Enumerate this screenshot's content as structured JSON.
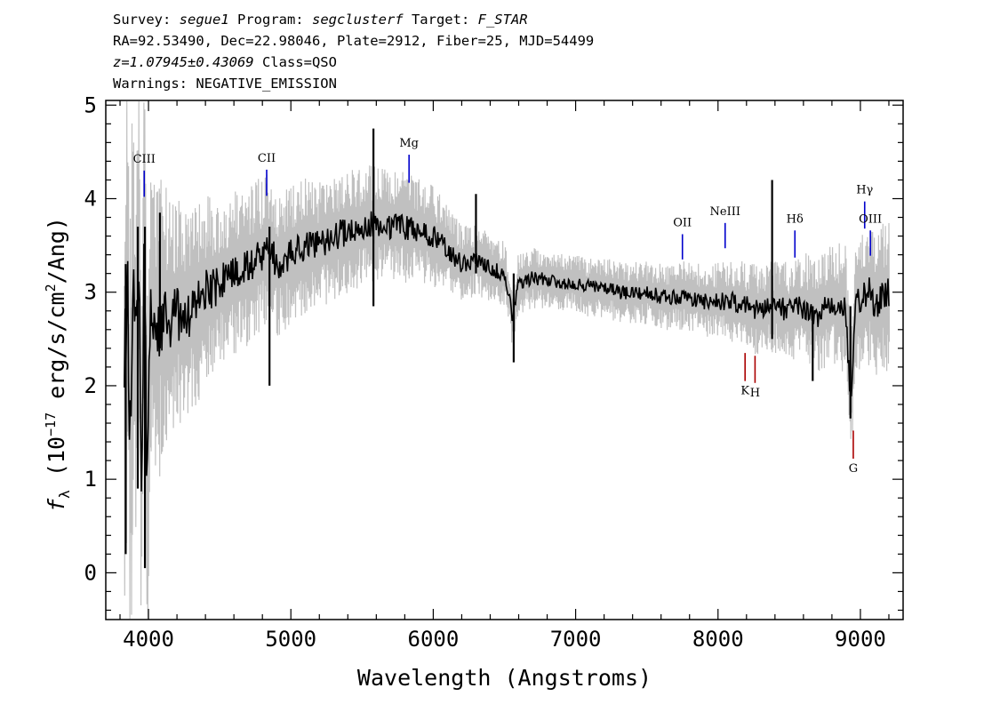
{
  "header": {
    "line1": {
      "survey_label": "Survey: ",
      "survey": "segue1",
      "program_label": " Program: ",
      "program": "segclusterf",
      "target_label": " Target: ",
      "target": "F_STAR"
    },
    "line2": "RA=92.53490, Dec=22.98046, Plate=2912, Fiber=25, MJD=54499",
    "line3": {
      "redshift": "z=1.07945±0.43069",
      "class": " Class=QSO"
    },
    "line4": "Warnings: NEGATIVE_EMISSION"
  },
  "chart_data": {
    "type": "line",
    "xlabel": "Wavelength (Angstroms)",
    "ylabel_prefix": "f",
    "ylabel_sub": "λ",
    "ylabel_unit_a": " (10",
    "ylabel_exp": "−17",
    "ylabel_unit_b": " erg/s/cm",
    "ylabel_exp2": "2",
    "ylabel_unit_c": "/Ang)",
    "xlim": [
      3700,
      9300
    ],
    "ylim": [
      -0.5,
      5.05
    ],
    "x_ticks": [
      4000,
      5000,
      6000,
      7000,
      8000,
      9000
    ],
    "y_ticks": [
      0,
      1,
      2,
      3,
      4,
      5
    ],
    "colors": {
      "flux": "#000000",
      "error_band": "#c0c0c0",
      "emission_line": "#0000cc",
      "absorption_line": "#aa0000"
    },
    "flux_series": {
      "name": "",
      "x": [
        3830,
        3850,
        3870,
        3890,
        3910,
        3930,
        3950,
        3970,
        3990,
        4010,
        4050,
        4100,
        4150,
        4200,
        4250,
        4300,
        4350,
        4400,
        4500,
        4600,
        4700,
        4800,
        4850,
        4900,
        5000,
        5100,
        5200,
        5300,
        5400,
        5500,
        5600,
        5700,
        5800,
        5900,
        6000,
        6100,
        6200,
        6300,
        6400,
        6500,
        6560,
        6600,
        6700,
        6800,
        6900,
        7000,
        7100,
        7200,
        7300,
        7400,
        7500,
        7600,
        7700,
        7800,
        7900,
        8000,
        8100,
        8200,
        8300,
        8400,
        8500,
        8600,
        8700,
        8800,
        8900,
        8930,
        8960,
        9000,
        9050,
        9100,
        9150,
        9200
      ],
      "y": [
        1.9,
        3.2,
        1.2,
        3.0,
        2.3,
        3.4,
        1.0,
        3.6,
        0.9,
        2.7,
        2.6,
        2.7,
        2.6,
        2.8,
        2.7,
        2.8,
        2.9,
        3.0,
        3.1,
        3.2,
        3.3,
        3.4,
        3.5,
        3.3,
        3.4,
        3.5,
        3.5,
        3.6,
        3.65,
        3.7,
        3.75,
        3.7,
        3.7,
        3.65,
        3.6,
        3.45,
        3.3,
        3.35,
        3.25,
        3.2,
        2.7,
        3.1,
        3.15,
        3.15,
        3.1,
        3.1,
        3.05,
        3.05,
        3.0,
        3.0,
        3.0,
        2.95,
        2.95,
        2.95,
        2.9,
        2.9,
        2.9,
        2.85,
        2.8,
        2.85,
        2.8,
        2.85,
        2.75,
        2.9,
        2.8,
        1.8,
        2.8,
        2.9,
        3.0,
        2.9,
        2.95,
        3.0
      ]
    },
    "flux_spikes": [
      {
        "x": 3840,
        "y_min": 0.2,
        "y_max": 3.3
      },
      {
        "x": 3925,
        "y_min": 0.9,
        "y_max": 3.7
      },
      {
        "x": 3975,
        "y_min": 0.05,
        "y_max": 3.7
      },
      {
        "x": 4080,
        "y_min": 2.4,
        "y_max": 3.85
      },
      {
        "x": 4850,
        "y_min": 2.0,
        "y_max": 3.7
      },
      {
        "x": 5580,
        "y_min": 2.85,
        "y_max": 4.75
      },
      {
        "x": 6300,
        "y_min": 3.2,
        "y_max": 4.05
      },
      {
        "x": 6565,
        "y_min": 2.25,
        "y_max": 3.2
      },
      {
        "x": 8380,
        "y_min": 2.5,
        "y_max": 4.2
      },
      {
        "x": 8665,
        "y_min": 2.05,
        "y_max": 2.85
      },
      {
        "x": 8930,
        "y_min": 1.65,
        "y_max": 2.85
      }
    ],
    "error_band": {
      "x": [
        3830,
        3900,
        4000,
        4100,
        4200,
        4300,
        4400,
        4600,
        4800,
        5000,
        5200,
        5400,
        5600,
        5800,
        6000,
        6200,
        6400,
        6600,
        6800,
        7000,
        7200,
        7400,
        7600,
        7800,
        8000,
        8200,
        8400,
        8600,
        8800,
        9000,
        9200
      ],
      "half_width": [
        2.2,
        1.9,
        1.6,
        1.3,
        1.1,
        0.95,
        0.85,
        0.75,
        0.7,
        0.62,
        0.58,
        0.55,
        0.52,
        0.5,
        0.45,
        0.35,
        0.3,
        0.28,
        0.27,
        0.26,
        0.27,
        0.28,
        0.3,
        0.32,
        0.35,
        0.4,
        0.42,
        0.48,
        0.55,
        0.65,
        0.7
      ]
    },
    "lines": [
      {
        "label": "CIII",
        "x": 3970,
        "y0": 4.02,
        "y1": 4.3,
        "kind": "emission"
      },
      {
        "label": "CII",
        "x": 4830,
        "y0": 4.03,
        "y1": 4.31,
        "kind": "emission"
      },
      {
        "label": "Mg",
        "x": 5830,
        "y0": 4.17,
        "y1": 4.47,
        "kind": "emission"
      },
      {
        "label": "OII",
        "x": 7750,
        "y0": 3.35,
        "y1": 3.62,
        "kind": "emission"
      },
      {
        "label": "NeIII",
        "x": 8050,
        "y0": 3.47,
        "y1": 3.74,
        "kind": "emission"
      },
      {
        "label": "Hδ",
        "x": 8540,
        "y0": 3.37,
        "y1": 3.66,
        "kind": "emission"
      },
      {
        "label": "Hγ",
        "x": 9030,
        "y0": 3.68,
        "y1": 3.97,
        "kind": "emission"
      },
      {
        "label": "OIII",
        "x": 9070,
        "y0": 3.39,
        "y1": 3.66,
        "kind": "emission"
      },
      {
        "label": "K",
        "x": 8190,
        "y0": 2.05,
        "y1": 2.35,
        "kind": "absorption"
      },
      {
        "label": "H",
        "x": 8260,
        "y0": 2.03,
        "y1": 2.32,
        "kind": "absorption"
      },
      {
        "label": "G",
        "x": 8950,
        "y0": 1.22,
        "y1": 1.52,
        "kind": "absorption"
      }
    ]
  }
}
